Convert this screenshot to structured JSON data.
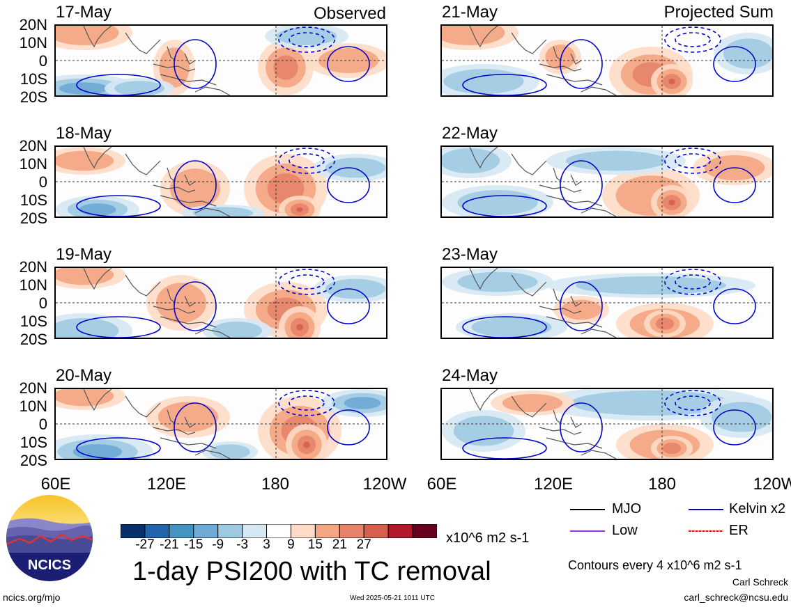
{
  "header": {
    "left_label": "Observed",
    "right_label": "Projected Sum"
  },
  "panels_left": [
    {
      "date": "17-May"
    },
    {
      "date": "18-May"
    },
    {
      "date": "19-May"
    },
    {
      "date": "20-May"
    }
  ],
  "panels_right": [
    {
      "date": "21-May"
    },
    {
      "date": "22-May"
    },
    {
      "date": "23-May"
    },
    {
      "date": "24-May"
    }
  ],
  "lat_labels": [
    "20N",
    "10N",
    "0",
    "10S",
    "20S"
  ],
  "lon_labels": [
    "60E",
    "120E",
    "180",
    "120W"
  ],
  "colorbar": {
    "ticks": [
      "-27",
      "-21",
      "-15",
      "-9",
      "-3",
      "3",
      "9",
      "15",
      "21",
      "27"
    ],
    "colors": [
      "#08306b",
      "#2166ac",
      "#4393c3",
      "#6fa9d6",
      "#9ecae1",
      "#d6e8f4",
      "#ffffff",
      "#fddbc7",
      "#f4a582",
      "#e6836a",
      "#d6604d",
      "#b2182b",
      "#67001f"
    ],
    "unit": "x10^6 m2 s-1"
  },
  "legend": {
    "mjo": "MJO",
    "kelvin": "Kelvin x2",
    "low": "Low",
    "er": "ER",
    "colors": {
      "mjo": "#000000",
      "kelvin": "#0000cc",
      "low": "#9933cc",
      "er": "#ff0000"
    }
  },
  "contour_note": "Contours every 4 x10^6 m2 s-1",
  "title": "1-day PSI200 with TC removal",
  "author": "Carl Schreck",
  "email": "carl_schreck@ncsu.edu",
  "website": "ncics.org/mjo",
  "timestamp": "Wed 2025-05-21 1011 UTC",
  "logo_text": "NCICS"
}
